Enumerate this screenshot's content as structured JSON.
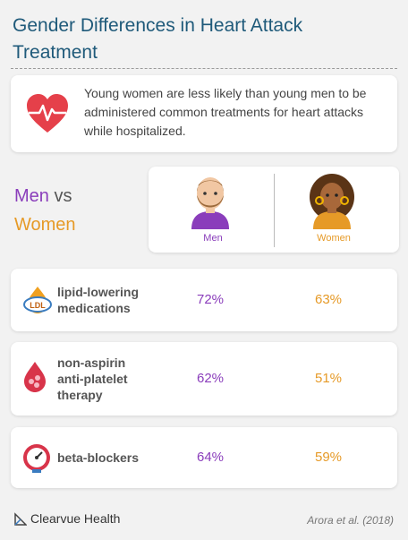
{
  "title": "Gender Differences in Heart Attack Treatment",
  "intro": {
    "icon": "heart-pulse-icon",
    "text": "Young women are less likely than young men to be administered common treatments for heart attacks while hospitalized."
  },
  "comparison": {
    "men_word": "Men",
    "vs_word": "vs",
    "women_word": "Women",
    "men_label": "Men",
    "women_label": "Women",
    "men_color": "#8a3dbb",
    "women_color": "#e69a27"
  },
  "rows": [
    {
      "icon": "ldl-drop-icon",
      "label": "lipid-lowering medications",
      "men": "72%",
      "women": "63%"
    },
    {
      "icon": "blood-drop-icon",
      "label": "non-aspirin anti-platelet therapy",
      "men": "62%",
      "women": "51%"
    },
    {
      "icon": "blood-pressure-gauge-icon",
      "label": "beta-blockers",
      "men": "64%",
      "women": "59%"
    }
  ],
  "footer": {
    "brand": "Clearvue Health",
    "brand_icon": "clearvue-logo-icon",
    "citation": "Arora et al. (2018)"
  }
}
